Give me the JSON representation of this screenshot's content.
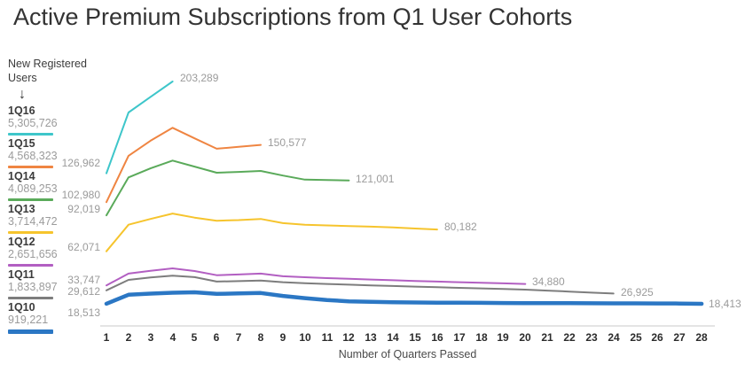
{
  "title": "Active Premium Subscriptions from Q1 User Cohorts",
  "legend": {
    "heading": "New Registered Users",
    "arrow_icon": "↓"
  },
  "chart_data": {
    "type": "line",
    "title": "Active Premium Subscriptions from Q1 User Cohorts",
    "xlabel": "Number of Quarters Passed",
    "ylabel": "",
    "grid": false,
    "legend_position": "left",
    "xlim": [
      1,
      28
    ],
    "ylim": [
      0,
      210000
    ],
    "x_ticks": [
      1,
      2,
      3,
      4,
      5,
      6,
      7,
      8,
      9,
      10,
      11,
      12,
      13,
      14,
      15,
      16,
      17,
      18,
      19,
      20,
      21,
      22,
      23,
      24,
      25,
      26,
      27,
      28
    ],
    "series": [
      {
        "name": "1Q16",
        "new_registered_users": "5,305,726",
        "color": "#3EC6CA",
        "start_label": "126,962",
        "end_label": "203,289",
        "values": [
          126962,
          177500,
          190500,
          203289
        ]
      },
      {
        "name": "1Q15",
        "new_registered_users": "4,568,323",
        "color": "#EF8542",
        "start_label": "102,980",
        "end_label": "150,577",
        "values": [
          102980,
          141500,
          154000,
          164800,
          156000,
          147400,
          148900,
          150577
        ]
      },
      {
        "name": "1Q14",
        "new_registered_users": "4,089,253",
        "color": "#5AAA5A",
        "start_label": "92,019",
        "end_label": "121,001",
        "values": [
          92019,
          123500,
          131000,
          137500,
          132500,
          127400,
          128100,
          128900,
          125100,
          121700,
          121400,
          121001
        ]
      },
      {
        "name": "1Q13",
        "new_registered_users": "3,714,472",
        "color": "#F6C42D",
        "start_label": "62,071",
        "end_label": "80,182",
        "values": [
          62071,
          84200,
          89000,
          93500,
          90100,
          87500,
          88000,
          89000,
          85500,
          84100,
          83600,
          83100,
          82600,
          81900,
          81000,
          80182
        ]
      },
      {
        "name": "1Q12",
        "new_registered_users": "2,651,656",
        "color": "#B25FC2",
        "start_label": "33,747",
        "end_label": "34,880",
        "values": [
          33747,
          43500,
          45800,
          47900,
          45700,
          42200,
          42800,
          43500,
          41300,
          40500,
          39800,
          39200,
          38600,
          38000,
          37400,
          36900,
          36400,
          35900,
          35400,
          34880
        ]
      },
      {
        "name": "1Q11",
        "new_registered_users": "1,833,897",
        "color": "#7D7D7D",
        "start_label": "29,612",
        "end_label": "26,925",
        "values": [
          29612,
          38300,
          40300,
          41800,
          40600,
          36900,
          37300,
          37700,
          36400,
          35500,
          34900,
          34300,
          33700,
          33200,
          32700,
          32200,
          31700,
          31200,
          30700,
          30200,
          29400,
          28600,
          27700,
          26925
        ]
      },
      {
        "name": "1Q10",
        "new_registered_users": "919,221",
        "color": "#2B77C4",
        "start_label": "18,513",
        "end_label": "18,413",
        "values": [
          18513,
          25900,
          26900,
          27600,
          28000,
          26700,
          27000,
          27400,
          25000,
          23100,
          21600,
          20500,
          20000,
          19700,
          19500,
          19400,
          19300,
          19200,
          19100,
          19000,
          18950,
          18900,
          18850,
          18800,
          18750,
          18700,
          18600,
          18413
        ]
      }
    ]
  }
}
